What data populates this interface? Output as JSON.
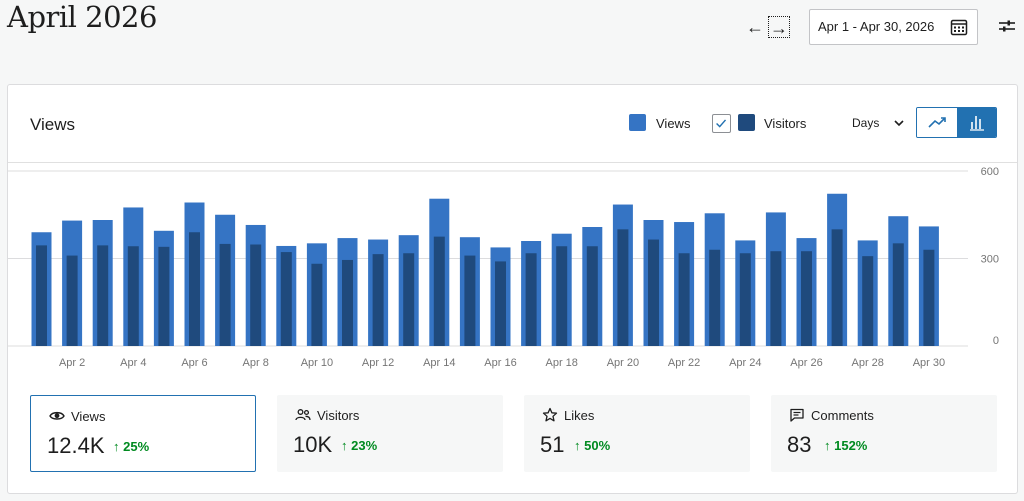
{
  "header": {
    "title": "April 2026",
    "prev_arrow": "←",
    "next_arrow": "→",
    "date_range": "Apr 1 - Apr 30, 2026"
  },
  "card": {
    "title": "Views",
    "legend": [
      {
        "label": "Views",
        "color": "#3574c4"
      },
      {
        "label": "Visitors",
        "color": "#1f4a7d"
      }
    ],
    "period": "Days",
    "chart_modes": [
      "line-chart-icon",
      "bar-chart-icon"
    ]
  },
  "stats": [
    {
      "label": "Views",
      "icon": "eye-icon",
      "value": "12.4K",
      "change": "↑ 25%"
    },
    {
      "label": "Visitors",
      "icon": "people-icon",
      "value": "10K",
      "change": "↑ 23%"
    },
    {
      "label": "Likes",
      "icon": "star-icon",
      "value": "51",
      "change": "↑ 50%"
    },
    {
      "label": "Comments",
      "icon": "comment-icon",
      "value": "83",
      "change": "↑ 152%"
    }
  ],
  "chart_data": {
    "type": "bar",
    "categories": [
      "Apr 1",
      "Apr 2",
      "Apr 3",
      "Apr 4",
      "Apr 5",
      "Apr 6",
      "Apr 7",
      "Apr 8",
      "Apr 9",
      "Apr 10",
      "Apr 11",
      "Apr 12",
      "Apr 13",
      "Apr 14",
      "Apr 15",
      "Apr 16",
      "Apr 17",
      "Apr 18",
      "Apr 19",
      "Apr 20",
      "Apr 21",
      "Apr 22",
      "Apr 23",
      "Apr 24",
      "Apr 25",
      "Apr 26",
      "Apr 27",
      "Apr 28",
      "Apr 29",
      "Apr 30"
    ],
    "x_tick_labels": [
      "Apr 2",
      "Apr 4",
      "Apr 6",
      "Apr 8",
      "Apr 10",
      "Apr 12",
      "Apr 14",
      "Apr 16",
      "Apr 18",
      "Apr 20",
      "Apr 22",
      "Apr 24",
      "Apr 26",
      "Apr 28",
      "Apr 30"
    ],
    "series": [
      {
        "name": "Views",
        "color": "#3574c4",
        "values": [
          390,
          430,
          432,
          475,
          395,
          492,
          450,
          415,
          343,
          352,
          370,
          365,
          380,
          505,
          373,
          338,
          360,
          385,
          408,
          485,
          432,
          425,
          455,
          362,
          458,
          370,
          522,
          362,
          445,
          410
        ]
      },
      {
        "name": "Visitors",
        "color": "#1f4a7d",
        "values": [
          345,
          310,
          345,
          342,
          340,
          390,
          350,
          348,
          322,
          282,
          295,
          315,
          318,
          375,
          310,
          290,
          318,
          342,
          342,
          400,
          365,
          318,
          330,
          318,
          325,
          325,
          400,
          308,
          352,
          330
        ]
      }
    ],
    "ylim": [
      0,
      600
    ],
    "y_ticks": [
      0,
      300,
      600
    ],
    "grid": true
  }
}
